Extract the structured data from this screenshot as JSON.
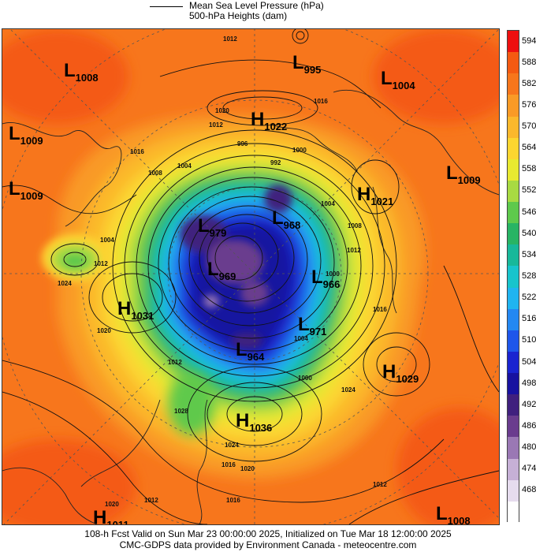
{
  "header": {
    "line1": "Mean Sea Level Pressure (hPa)",
    "line2": "500-hPa Heights (dam)"
  },
  "colorbar": {
    "levels": [
      {
        "label": "594",
        "color": "#ee1010"
      },
      {
        "label": "588",
        "color": "#f45a12"
      },
      {
        "label": "582",
        "color": "#f7761c"
      },
      {
        "label": "576",
        "color": "#f99a26"
      },
      {
        "label": "570",
        "color": "#fbb82c"
      },
      {
        "label": "564",
        "color": "#fcd630"
      },
      {
        "label": "558",
        "color": "#e8e930"
      },
      {
        "label": "552",
        "color": "#a8da42"
      },
      {
        "label": "546",
        "color": "#5ec94c"
      },
      {
        "label": "540",
        "color": "#28b464"
      },
      {
        "label": "534",
        "color": "#18b89a"
      },
      {
        "label": "528",
        "color": "#18c4cc"
      },
      {
        "label": "522",
        "color": "#20b4f0"
      },
      {
        "label": "516",
        "color": "#2488f2"
      },
      {
        "label": "510",
        "color": "#1e56ea"
      },
      {
        "label": "504",
        "color": "#1a24d0"
      },
      {
        "label": "498",
        "color": "#1812a0"
      },
      {
        "label": "492",
        "color": "#40207e"
      },
      {
        "label": "486",
        "color": "#6a3c8e"
      },
      {
        "label": "480",
        "color": "#9a78b4"
      },
      {
        "label": "474",
        "color": "#c6b0d6"
      },
      {
        "label": "468",
        "color": "#e6dcee"
      },
      {
        "label": "",
        "color": "#ffffff"
      }
    ]
  },
  "pressure_centers": [
    {
      "type": "L",
      "value": "1008"
    },
    {
      "type": "L",
      "value": "995"
    },
    {
      "type": "L",
      "value": "1004"
    },
    {
      "type": "H",
      "value": "1022"
    },
    {
      "type": "L",
      "value": "1009"
    },
    {
      "type": "L",
      "value": "1009"
    },
    {
      "type": "L",
      "value": "1009"
    },
    {
      "type": "H",
      "value": "1021"
    },
    {
      "type": "L",
      "value": "979"
    },
    {
      "type": "L",
      "value": "968"
    },
    {
      "type": "L",
      "value": "969"
    },
    {
      "type": "L",
      "value": "966"
    },
    {
      "type": "H",
      "value": "1031"
    },
    {
      "type": "L",
      "value": "971"
    },
    {
      "type": "L",
      "value": "964"
    },
    {
      "type": "H",
      "value": "1029"
    },
    {
      "type": "H",
      "value": "1036"
    },
    {
      "type": "H",
      "value": "1011"
    },
    {
      "type": "L",
      "value": "1008"
    }
  ],
  "isobar_labels": [
    "1012",
    "1020",
    "1016",
    "1012",
    "1016",
    "1008",
    "1004",
    "996",
    "992",
    "1000",
    "1004",
    "1008",
    "1012",
    "1000",
    "1012",
    "1004",
    "1016",
    "1024",
    "1020",
    "1028",
    "1024",
    "1016",
    "1012",
    "1004",
    "1000",
    "1024",
    "1020",
    "1016",
    "1012",
    "1020",
    "1012"
  ],
  "footer": {
    "line1": "108-h Fcst Valid on Sun Mar 23 00:00:00 2025, Initialized on Tue Mar 18 12:00:00 2025",
    "line2": "CMC-GDPS data provided by Environment Canada - meteocentre.com"
  }
}
